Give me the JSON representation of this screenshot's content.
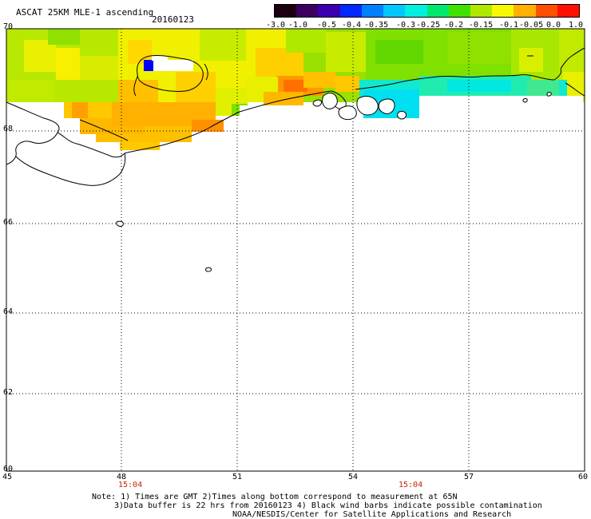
{
  "header": {
    "title": "ASCAT 25KM MLE-1 ascending",
    "date": "20160123"
  },
  "colorbar": {
    "labels": [
      "-3.0",
      "-1.0",
      "-0.5",
      "-0.4",
      "-0.35",
      "-0.3",
      "-0.25",
      "-0.2",
      "-0.15",
      "-0.1",
      "-0.05",
      "0.0",
      "1.0"
    ],
    "colors": [
      "#1a0010",
      "#3c0060",
      "#3a00b0",
      "#0028ff",
      "#0080ff",
      "#00c8ff",
      "#00f0e0",
      "#00e870",
      "#40e000",
      "#b0e800",
      "#f8f800",
      "#ffb000",
      "#ff5000",
      "#ff1000"
    ]
  },
  "map": {
    "lat_labels": [
      "70",
      "68",
      "66",
      "64",
      "62",
      "60"
    ],
    "lon_labels": [
      "45",
      "48",
      "51",
      "54",
      "57",
      "60"
    ],
    "time_labels": [
      "15:04",
      "15:04"
    ]
  },
  "notes": {
    "line1": "Note: 1) Times are GMT 2)Times along bottom correspond to measurement at 65N",
    "line2": "3)Data buffer is 22 hrs from 20160123 4) Black wind barbs indicate possible contamination",
    "line3": "NOAA/NESDIS/Center for Satellite Applications and Research"
  }
}
